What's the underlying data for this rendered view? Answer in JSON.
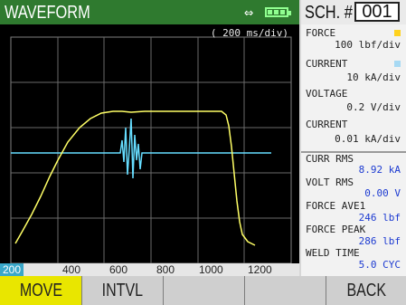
{
  "header": {
    "title": "WAVEFORM",
    "transfer_icon": "⇔",
    "battery_icon": "battery-icon",
    "schedule_label": "SCH. #",
    "schedule_number": "001"
  },
  "plot": {
    "timebase": "( 200 ms/div)",
    "x_ticks": [
      "200",
      "400",
      "600",
      "800",
      "1000",
      "1200"
    ],
    "colors": {
      "force": "#ffff66",
      "current": "#66ddff",
      "grid": "#707070"
    }
  },
  "channels": {
    "ch1_label": "FORCE",
    "ch1_scale": "100 lbf/div",
    "ch1_color": "#ffd21e",
    "ch2_label": "CURRENT",
    "ch2_scale": "10 kA/div",
    "ch2_color": "#a7d9f3",
    "ch3_label": "VOLTAGE",
    "ch3_scale": "0.2  V/div",
    "ch4_label": "CURRENT",
    "ch4_scale": "0.01 kA/div"
  },
  "readings": {
    "curr_rms_label": "CURR RMS",
    "curr_rms_value": "8.92 kA",
    "volt_rms_label": "VOLT RMS",
    "volt_rms_value": "0.00 V",
    "force_ave_label": "FORCE AVE1",
    "force_ave_value": "246 lbf",
    "force_peak_label": "FORCE PEAK",
    "force_peak_value": "286 lbf",
    "weld_time_label": "WELD TIME",
    "weld_time_value": "5.0 CYC"
  },
  "softkeys": {
    "move": "MOVE",
    "intvl": "INTVL",
    "key3": "",
    "key4": "",
    "back": "BACK"
  }
}
